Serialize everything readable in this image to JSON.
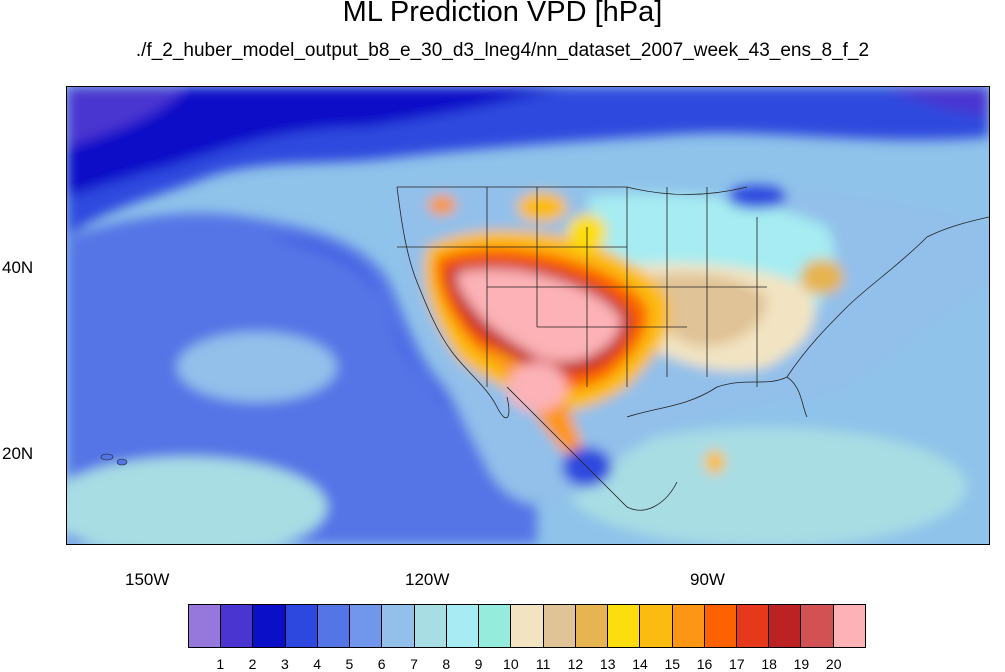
{
  "title": "ML Prediction VPD [hPa]",
  "subtitle": "./f_2_huber_model_output_b8_e_30_d3_lneg4/nn_dataset_2007_week_43_ens_8_f_2",
  "lat_labels": [
    "40N",
    "20N"
  ],
  "lon_labels": [
    "150W",
    "120W",
    "90W"
  ],
  "colorbar": {
    "labels": [
      "1",
      "2",
      "3",
      "4",
      "5",
      "6",
      "7",
      "8",
      "9",
      "10",
      "11",
      "12",
      "13",
      "14",
      "15",
      "16",
      "17",
      "18",
      "19",
      "20"
    ],
    "colors": [
      "#9678dc",
      "#4a35d0",
      "#0b10c8",
      "#2d48de",
      "#5475e6",
      "#7097ec",
      "#92c0ea",
      "#a8dde4",
      "#a6ecf2",
      "#96ecdc",
      "#f2e4c2",
      "#e0c396",
      "#e6b450",
      "#fcde0e",
      "#fcbb10",
      "#fc9614",
      "#fc6202",
      "#e6391c",
      "#bc2224",
      "#d25254",
      "#fcb2b6"
    ]
  },
  "chart_data": {
    "type": "heatmap",
    "title": "ML Prediction VPD [hPa]",
    "subtitle": "./f_2_huber_model_output_b8_e_30_d3_lneg4/nn_dataset_2007_week_43_ens_8_f_2",
    "xlabel": "",
    "ylabel": "",
    "x_ticks": [
      "150W",
      "120W",
      "90W"
    ],
    "y_ticks": [
      "40N",
      "20N"
    ],
    "colorbar_levels": [
      1,
      2,
      3,
      4,
      5,
      6,
      7,
      8,
      9,
      10,
      11,
      12,
      13,
      14,
      15,
      16,
      17,
      18,
      19,
      20
    ]
  }
}
